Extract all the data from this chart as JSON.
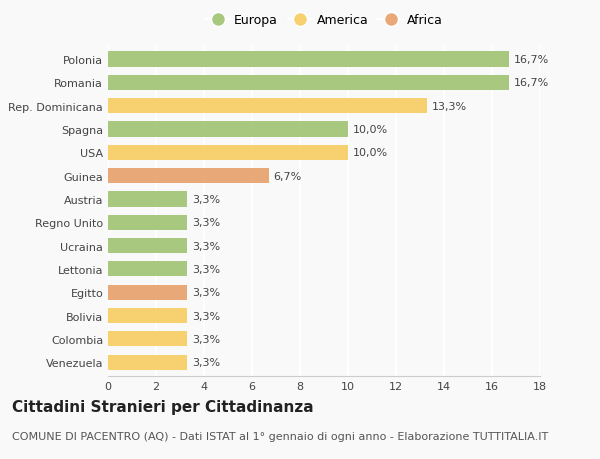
{
  "categories": [
    "Polonia",
    "Romania",
    "Rep. Dominicana",
    "Spagna",
    "USA",
    "Guinea",
    "Austria",
    "Regno Unito",
    "Ucraina",
    "Lettonia",
    "Egitto",
    "Bolivia",
    "Colombia",
    "Venezuela"
  ],
  "values": [
    16.7,
    16.7,
    13.3,
    10.0,
    10.0,
    6.7,
    3.3,
    3.3,
    3.3,
    3.3,
    3.3,
    3.3,
    3.3,
    3.3
  ],
  "labels": [
    "16,7%",
    "16,7%",
    "13,3%",
    "10,0%",
    "10,0%",
    "6,7%",
    "3,3%",
    "3,3%",
    "3,3%",
    "3,3%",
    "3,3%",
    "3,3%",
    "3,3%",
    "3,3%"
  ],
  "continents": [
    "Europa",
    "Europa",
    "America",
    "Europa",
    "America",
    "Africa",
    "Europa",
    "Europa",
    "Europa",
    "Europa",
    "Africa",
    "America",
    "America",
    "America"
  ],
  "colors": {
    "Europa": "#a8c880",
    "America": "#f7d070",
    "Africa": "#e8a878"
  },
  "legend_labels": [
    "Europa",
    "America",
    "Africa"
  ],
  "xlim": [
    0,
    18
  ],
  "xticks": [
    0,
    2,
    4,
    6,
    8,
    10,
    12,
    14,
    16,
    18
  ],
  "title": "Cittadini Stranieri per Cittadinanza",
  "subtitle": "COMUNE DI PACENTRO (AQ) - Dati ISTAT al 1° gennaio di ogni anno - Elaborazione TUTTITALIA.IT",
  "background_color": "#f9f9f9",
  "grid_color": "#ffffff",
  "bar_height": 0.65,
  "title_fontsize": 11,
  "subtitle_fontsize": 8,
  "label_fontsize": 8,
  "tick_fontsize": 8,
  "legend_fontsize": 9
}
